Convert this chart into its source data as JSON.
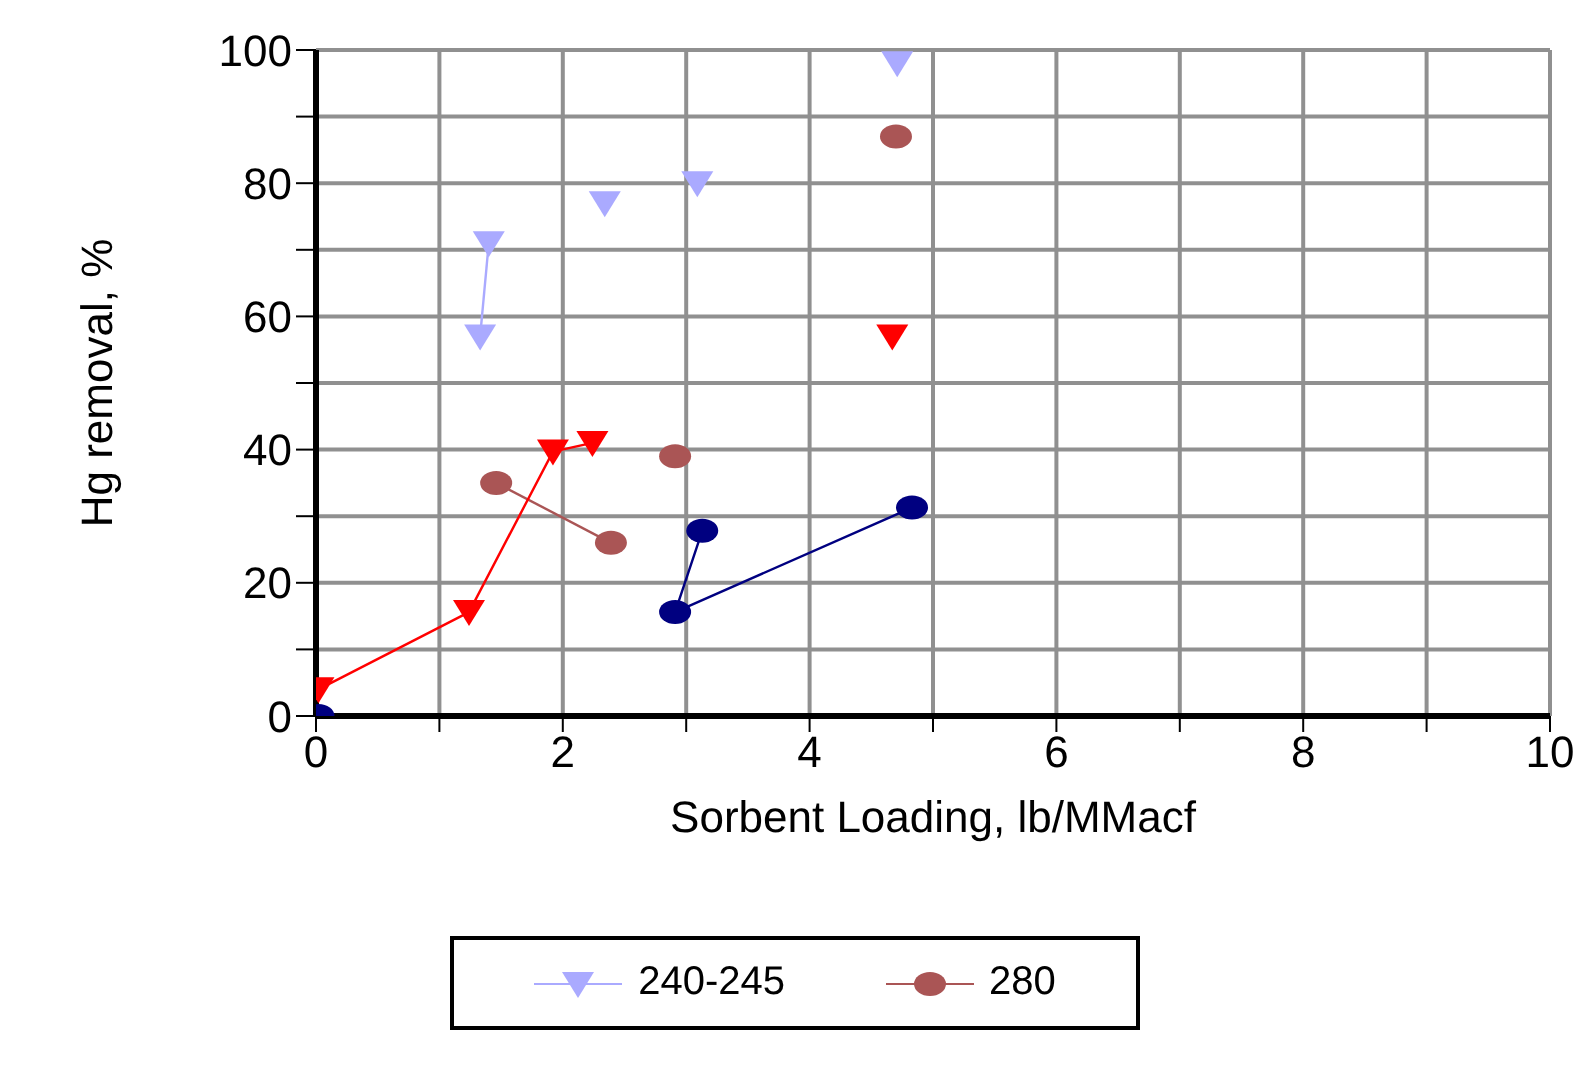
{
  "chart_data": {
    "type": "line",
    "xlabel": "Sorbent Loading, lb/MMacf",
    "ylabel": "Hg removal, %",
    "xlim": [
      0,
      10
    ],
    "xticks": [
      0,
      {
        "value": 1,
        "label": null
      },
      2,
      {
        "value": 3,
        "label": null
      },
      4,
      {
        "value": 5,
        "label": null
      },
      6,
      {
        "value": 7,
        "label": null
      },
      8,
      {
        "value": 9,
        "label": null
      },
      10
    ],
    "ylim": [
      0,
      100
    ],
    "yticks": [
      0,
      {
        "value": 10,
        "label": null
      },
      20,
      {
        "value": 30,
        "label": null
      },
      40,
      {
        "value": 50,
        "label": null
      },
      60,
      {
        "value": 70,
        "label": null
      },
      80,
      {
        "value": 90,
        "label": null
      },
      100
    ],
    "grid": true,
    "legend": "bottom",
    "series": [
      {
        "name": "240-245",
        "color": "#aaaaff",
        "marker": "triangle",
        "x": [
          1.4,
          1.33,
          null,
          2.34,
          null,
          3.09,
          null,
          4.71
        ],
        "values": [
          71,
          57,
          null,
          77,
          null,
          80,
          null,
          98
        ]
      },
      {
        "name": "280",
        "color": "#aa5555",
        "marker": "circle",
        "x": [
          1.46,
          2.39,
          null,
          2.91,
          null,
          4.7
        ],
        "values": [
          35,
          26,
          null,
          39,
          null,
          87
        ]
      },
      {
        "color": "#ff0000",
        "marker": "triangle",
        "x": [
          0.02,
          1.24,
          1.92,
          2.24,
          null,
          4.67
        ],
        "values": [
          4,
          15.6,
          39.7,
          41,
          null,
          57
        ]
      },
      {
        "color": "#000080",
        "marker": "circle",
        "x": [
          0.02,
          null,
          3.13,
          2.91,
          4.83
        ],
        "values": [
          0,
          null,
          27.8,
          15.6,
          31.3
        ]
      }
    ]
  }
}
